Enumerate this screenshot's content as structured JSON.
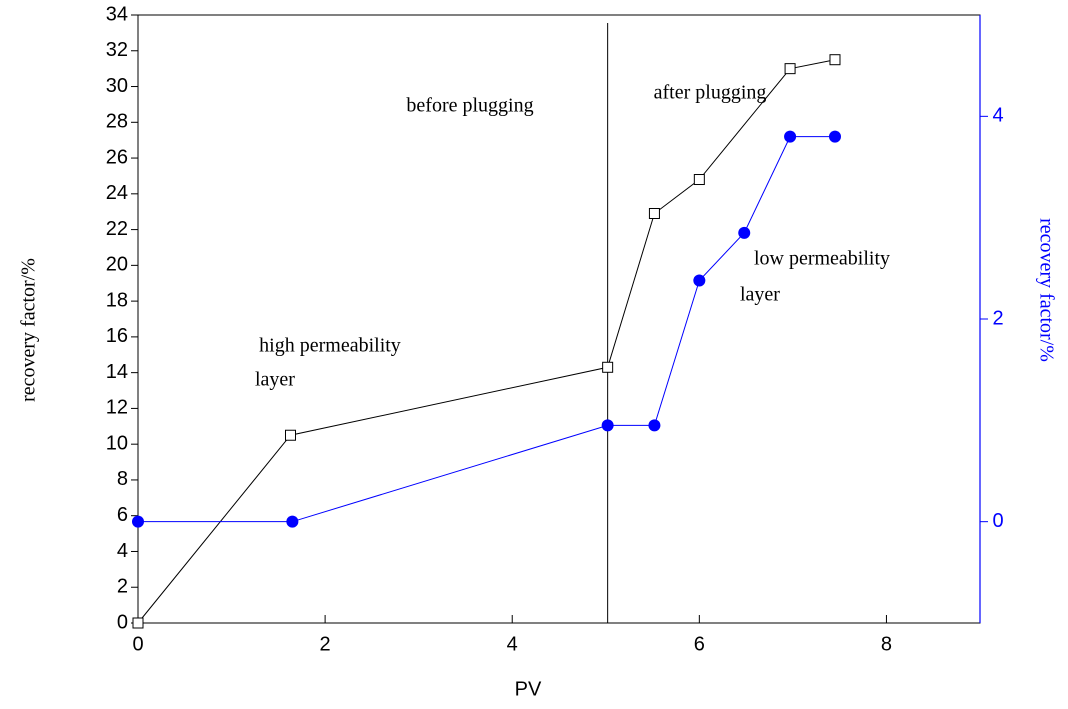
{
  "chart_data": {
    "type": "line",
    "xlabel": "PV",
    "ylabel": "recovery factor/%",
    "y2label": "recovery factor/%",
    "xlim": [
      0,
      9
    ],
    "xticks": [
      0,
      2,
      4,
      6,
      8
    ],
    "ylim": [
      0,
      34
    ],
    "yticks": [
      0,
      2,
      4,
      6,
      8,
      10,
      12,
      14,
      16,
      18,
      20,
      22,
      24,
      26,
      28,
      30,
      32,
      34
    ],
    "y2lim": [
      -1,
      5
    ],
    "y2ticks": [
      0,
      2,
      4
    ],
    "y2color": "#0000ff",
    "divider_x": 5.02,
    "annotations": [
      "before plugging",
      "after plugging",
      "high permeability",
      "layer",
      "low permeability",
      "layer"
    ],
    "series": [
      {
        "color": "#000000",
        "marker": "square",
        "x": [
          0,
          1.63,
          5.02,
          5.52,
          6.0,
          6.97,
          7.45
        ],
        "values": [
          0,
          10.5,
          14.3,
          22.9,
          24.8,
          31.0,
          31.5
        ]
      },
      {
        "color": "#0000ff",
        "marker": "circle",
        "axis": "y2",
        "x": [
          0,
          1.65,
          5.02,
          5.52,
          6.0,
          6.48,
          6.97,
          7.45
        ],
        "values": [
          0,
          0,
          0.95,
          0.95,
          2.38,
          2.85,
          3.8,
          3.8
        ]
      }
    ]
  }
}
